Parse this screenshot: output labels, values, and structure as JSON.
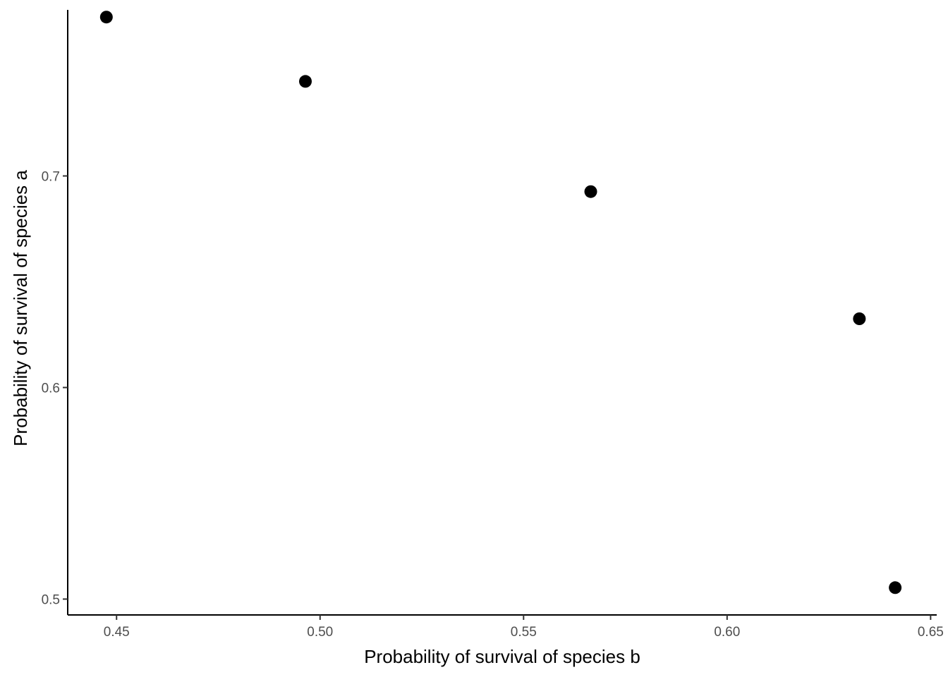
{
  "chart_data": {
    "type": "scatter",
    "title": "",
    "xlabel": "Probability of survival of species b",
    "ylabel": "Probability of survival of species a",
    "xlim": [
      0.438,
      0.6515
    ],
    "ylim": [
      0.4925,
      0.7785
    ],
    "x_ticks": [
      {
        "value": 0.45,
        "label": "0.45"
      },
      {
        "value": 0.5,
        "label": "0.50"
      },
      {
        "value": 0.55,
        "label": "0.55"
      },
      {
        "value": 0.6,
        "label": "0.60"
      },
      {
        "value": 0.65,
        "label": "0.65"
      }
    ],
    "y_ticks": [
      {
        "value": 0.5,
        "label": "0.5"
      },
      {
        "value": 0.6,
        "label": "0.6"
      },
      {
        "value": 0.7,
        "label": "0.7"
      }
    ],
    "points": [
      {
        "x": 0.4475,
        "y": 0.7751
      },
      {
        "x": 0.4964,
        "y": 0.7447
      },
      {
        "x": 0.5665,
        "y": 0.6926
      },
      {
        "x": 0.6325,
        "y": 0.6325
      },
      {
        "x": 0.6413,
        "y": 0.5054
      }
    ],
    "grid": false,
    "legend": "none",
    "point_color": "#000000"
  }
}
